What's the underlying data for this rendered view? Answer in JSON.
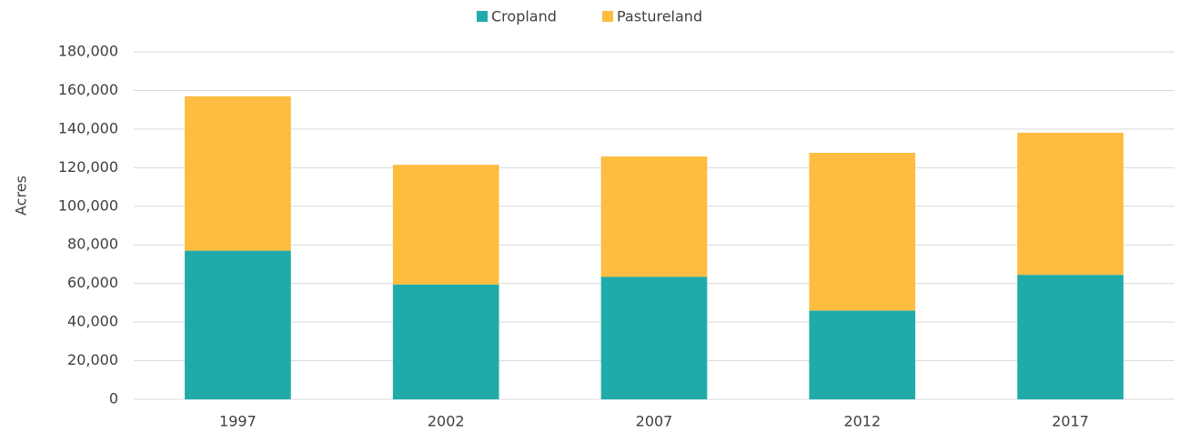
{
  "chart_data": {
    "type": "stacked_bar",
    "y_label": "Acres",
    "categories": [
      "1997",
      "2002",
      "2007",
      "2012",
      "2017"
    ],
    "series": [
      {
        "name": "Cropland",
        "color": "#20abaa",
        "values": [
          77000,
          59500,
          63500,
          46000,
          64500
        ]
      },
      {
        "name": "Pastureland",
        "color": "#fdbd41",
        "values": [
          80000,
          62000,
          62300,
          81700,
          73600
        ]
      }
    ],
    "ylim": [
      0,
      180000
    ],
    "yticks": [
      0,
      {
        "value": 20000,
        "label": "20,000"
      },
      {
        "value": 40000,
        "label": "40,000"
      },
      {
        "value": 60000,
        "label": "60,000"
      },
      {
        "value": 80000,
        "label": "80,000"
      },
      {
        "value": 100000,
        "label": "100,000"
      },
      {
        "value": 120000,
        "label": "120,000"
      },
      {
        "value": 140000,
        "label": "140,000"
      },
      {
        "value": 160000,
        "label": "160,000"
      },
      {
        "value": 180000,
        "label": "180,000"
      }
    ],
    "grid": true,
    "legend": "top"
  }
}
